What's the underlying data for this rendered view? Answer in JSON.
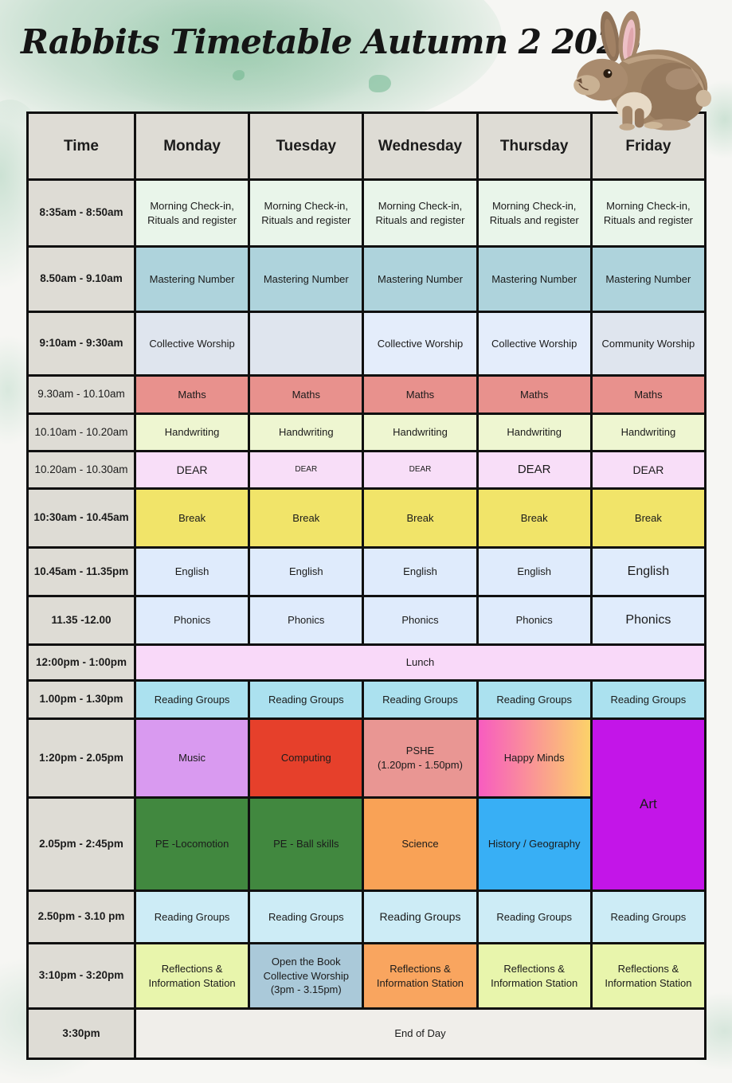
{
  "page": {
    "title": "Rabbits Timetable Autumn 2 2025"
  },
  "decorations": {
    "rabbit_icon": "watercolor-rabbit-illustration",
    "background_wash_color": "#a7d0b8",
    "border_color": "#101010",
    "header_bg": "#dedcd5",
    "time_col_bg": "#dedcd5"
  },
  "timetable": {
    "columns": [
      "Time",
      "Monday",
      "Tuesday",
      "Wednesday",
      "Thursday",
      "Friday"
    ],
    "rows": [
      {
        "time": "8:35am - 8:50am",
        "bold": true,
        "cells": [
          {
            "text": "Morning Check-in,\nRituals and register",
            "bg": "#e9f5ea"
          },
          {
            "text": "Morning Check-in,\nRituals and register",
            "bg": "#e9f5ea"
          },
          {
            "text": "Morning Check-in,\nRituals and register",
            "bg": "#e9f5ea"
          },
          {
            "text": "Morning Check-in,\nRituals and register",
            "bg": "#e9f5ea"
          },
          {
            "text": "Morning Check-in,\nRituals and register",
            "bg": "#e9f5ea"
          }
        ]
      },
      {
        "time": "8.50am - 9.10am",
        "bold": true,
        "cells": [
          {
            "text": "Mastering Number",
            "bg": "#aed3dc"
          },
          {
            "text": "Mastering Number",
            "bg": "#aed3dc"
          },
          {
            "text": "Mastering Number",
            "bg": "#aed3dc"
          },
          {
            "text": "Mastering Number",
            "bg": "#aed3dc"
          },
          {
            "text": "Mastering Number",
            "bg": "#aed3dc"
          }
        ]
      },
      {
        "time": "9:10am - 9:30am",
        "bold": true,
        "cells": [
          {
            "text": "Collective Worship",
            "bg": "#dfe5ee"
          },
          {
            "text": "",
            "bg": "#dfe5ee"
          },
          {
            "text": "Collective Worship",
            "bg": "#e4edfb"
          },
          {
            "text": "Collective Worship",
            "bg": "#e4edfb"
          },
          {
            "text": "Community Worship",
            "bg": "#dfe5ee"
          }
        ]
      },
      {
        "time": "9.30am - 10.10am",
        "bold": false,
        "cells": [
          {
            "text": "Maths",
            "bg": "#e8918d"
          },
          {
            "text": "Maths",
            "bg": "#e8918d"
          },
          {
            "text": "Maths",
            "bg": "#e8918d"
          },
          {
            "text": "Maths",
            "bg": "#e8918d"
          },
          {
            "text": "Maths",
            "bg": "#e8918d"
          }
        ]
      },
      {
        "time": "10.10am - 10.20am",
        "bold": false,
        "cells": [
          {
            "text": "Handwriting",
            "bg": "#eef6d1"
          },
          {
            "text": "Handwriting",
            "bg": "#eef6d1"
          },
          {
            "text": "Handwriting",
            "bg": "#eef6d1"
          },
          {
            "text": "Handwriting",
            "bg": "#eef6d1"
          },
          {
            "text": "Handwriting",
            "bg": "#eef6d1"
          }
        ]
      },
      {
        "time": "10.20am - 10.30am",
        "bold": false,
        "cells": [
          {
            "text": "DEAR",
            "bg": "#f8def8",
            "fs": 14
          },
          {
            "text": "DEAR",
            "bg": "#f8def8",
            "fs": 10
          },
          {
            "text": "DEAR",
            "bg": "#f8def8",
            "fs": 10
          },
          {
            "text": "DEAR",
            "bg": "#f8def8",
            "fs": 15
          },
          {
            "text": "DEAR",
            "bg": "#f8def8",
            "fs": 14
          }
        ]
      },
      {
        "time": "10:30am - 10.45am",
        "bold": true,
        "cells": [
          {
            "text": "Break",
            "bg": "#f1e469"
          },
          {
            "text": "Break",
            "bg": "#f1e469"
          },
          {
            "text": "Break",
            "bg": "#f1e469"
          },
          {
            "text": "Break",
            "bg": "#f1e469"
          },
          {
            "text": "Break",
            "bg": "#f1e469"
          }
        ]
      },
      {
        "time": "10.45am - 11.35pm",
        "bold": true,
        "cells": [
          {
            "text": "English",
            "bg": "#dfebfc"
          },
          {
            "text": "English",
            "bg": "#dfebfc"
          },
          {
            "text": "English",
            "bg": "#dfebfc"
          },
          {
            "text": "English",
            "bg": "#dfebfc"
          },
          {
            "text": "English",
            "bg": "#e0ecfc",
            "fs": 16
          }
        ]
      },
      {
        "time": "11.35 -12.00",
        "bold": true,
        "cells": [
          {
            "text": "Phonics",
            "bg": "#dfebfc"
          },
          {
            "text": "Phonics",
            "bg": "#dfebfc"
          },
          {
            "text": "Phonics",
            "bg": "#dfebfc"
          },
          {
            "text": "Phonics",
            "bg": "#dfebfc"
          },
          {
            "text": "Phonics",
            "bg": "#e0ecfc",
            "fs": 16
          }
        ]
      },
      {
        "time": "12:00pm - 1:00pm",
        "bold": true,
        "cells": [
          {
            "text": "Lunch",
            "bg": "#f9d9f9",
            "colspan": 5
          }
        ]
      },
      {
        "time": "1.00pm - 1.30pm",
        "bold": true,
        "cells": [
          {
            "text": "Reading Groups",
            "bg": "#abe1ef"
          },
          {
            "text": "Reading Groups",
            "bg": "#abe1ef"
          },
          {
            "text": "Reading Groups",
            "bg": "#abe1ef"
          },
          {
            "text": "Reading Groups",
            "bg": "#abe1ef"
          },
          {
            "text": "Reading Groups",
            "bg": "#abe1ef"
          }
        ]
      },
      {
        "time": "1:20pm - 2.05pm",
        "bold": true,
        "cells": [
          {
            "text": "Music",
            "bg": "#d99af0"
          },
          {
            "text": "Computing",
            "bg": "#e6402b"
          },
          {
            "text": "PSHE\n(1.20pm - 1.50pm)",
            "bg": "#e99693"
          },
          {
            "text": "Happy Minds",
            "bg": [
              "#f85cc0",
              "#fcd269"
            ]
          },
          {
            "text": "Art",
            "bg": "#c315e8",
            "rowspan": 2,
            "fs": 17
          }
        ]
      },
      {
        "time": "2.05pm - 2:45pm",
        "bold": true,
        "cells": [
          {
            "text": "PE -Locomotion",
            "bg": "#41883f"
          },
          {
            "text": "PE - Ball skills",
            "bg": "#41883f"
          },
          {
            "text": "Science",
            "bg": "#f9a256"
          },
          {
            "text": "History / Geography",
            "bg": "#38aff5"
          }
        ]
      },
      {
        "time": "2.50pm - 3.10 pm",
        "bold": true,
        "cells": [
          {
            "text": "Reading Groups",
            "bg": "#cdecf6"
          },
          {
            "text": "Reading Groups",
            "bg": "#cdecf6"
          },
          {
            "text": "Reading Groups",
            "bg": "#cdecf6",
            "fs": 14
          },
          {
            "text": "Reading Groups",
            "bg": "#cdecf6"
          },
          {
            "text": "Reading Groups",
            "bg": "#cdecf6"
          }
        ]
      },
      {
        "time": "3:10pm - 3:20pm",
        "bold": true,
        "cells": [
          {
            "text": "Reflections &\nInformation Station",
            "bg": "#e8f5ac"
          },
          {
            "text": "Open the Book\nCollective Worship\n(3pm - 3.15pm)",
            "bg": "#aac9d9"
          },
          {
            "text": "Reflections &\nInformation Station",
            "bg": "#f9a55f"
          },
          {
            "text": "Reflections &\nInformation Station",
            "bg": "#e8f5ac"
          },
          {
            "text": "Reflections &\nInformation Station",
            "bg": "#e8f5ac"
          }
        ]
      },
      {
        "time": "3:30pm",
        "bold": true,
        "cells": [
          {
            "text": "End of Day",
            "bg": "#f0eeea",
            "colspan": 5
          }
        ]
      }
    ]
  }
}
